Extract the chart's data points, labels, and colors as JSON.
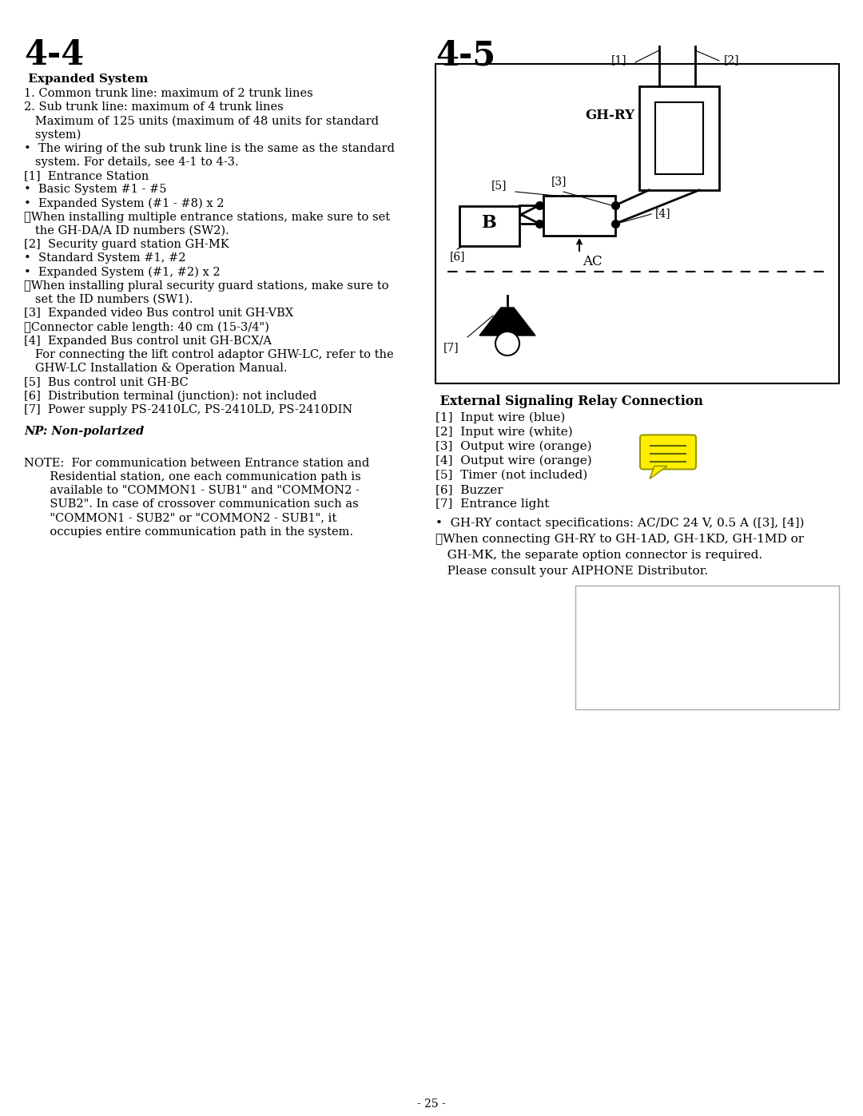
{
  "page_bg": "#ffffff",
  "left_title": "4-4",
  "right_title": "4-5",
  "left_section_title": " Expanded System",
  "left_body_lines": [
    {
      "text": "1. Common trunk line: maximum of 2 trunk lines",
      "indent": 0
    },
    {
      "text": "2. Sub trunk line: maximum of 4 trunk lines",
      "indent": 0
    },
    {
      "text": "   Maximum of 125 units (maximum of 48 units for standard",
      "indent": 0
    },
    {
      "text": "   system)",
      "indent": 0
    },
    {
      "text": "•  The wiring of the sub trunk line is the same as the standard",
      "indent": 0
    },
    {
      "text": "   system. For details, see 4-1 to 4-3.",
      "indent": 0
    },
    {
      "text": "[1]  Entrance Station",
      "indent": 0
    },
    {
      "text": "•  Basic System #1 - #5",
      "indent": 0
    },
    {
      "text": "•  Expanded System (#1 - #8) x 2",
      "indent": 0
    },
    {
      "text": "⚠When installing multiple entrance stations, make sure to set",
      "indent": 0
    },
    {
      "text": "   the GH-DA/A ID numbers (SW2).",
      "indent": 0
    },
    {
      "text": "[2]  Security guard station GH-MK",
      "indent": 0
    },
    {
      "text": "•  Standard System #1, #2",
      "indent": 0
    },
    {
      "text": "•  Expanded System (#1, #2) x 2",
      "indent": 0
    },
    {
      "text": "⚠When installing plural security guard stations, make sure to",
      "indent": 0
    },
    {
      "text": "   set the ID numbers (SW1).",
      "indent": 0
    },
    {
      "text": "[3]  Expanded video Bus control unit GH-VBX",
      "indent": 0
    },
    {
      "text": "⚠Connector cable length: 40 cm (15-3/4\")",
      "indent": 0
    },
    {
      "text": "[4]  Expanded Bus control unit GH-BCX/A",
      "indent": 0
    },
    {
      "text": "   For connecting the lift control adaptor GHW-LC, refer to the",
      "indent": 0
    },
    {
      "text": "   GHW-LC Installation & Operation Manual.",
      "indent": 0
    },
    {
      "text": "[5]  Bus control unit GH-BC",
      "indent": 0
    },
    {
      "text": "[6]  Distribution terminal (junction): not included",
      "indent": 0
    },
    {
      "text": "[7]  Power supply PS-2410LC, PS-2410LD, PS-2410DIN",
      "indent": 0
    }
  ],
  "np_text": "NP: Non-polarized",
  "note_lines": [
    "NOTE:  For communication between Entrance station and",
    "       Residential station, one each communication path is",
    "       available to \"COMMON1 - SUB1\" and \"COMMON2 -",
    "       SUB2\". In case of crossover communication such as",
    "       \"COMMON1 - SUB2\" or \"COMMON2 - SUB1\", it",
    "       occupies entire communication path in the system."
  ],
  "diagram_title": " External Signaling Relay Connection",
  "legend_lines": [
    "[1]  Input wire (blue)",
    "[2]  Input wire (white)",
    "[3]  Output wire (orange)",
    "[4]  Output wire (orange)",
    "[5]  Timer (not included)",
    "[6]  Buzzer",
    "[7]  Entrance light"
  ],
  "bullet_note": "•  GH-RY contact specifications: AC/DC 24 V, 0.5 A ([3], [4])",
  "warning_line1": "⚠When connecting GH-RY to GH-1AD, GH-1KD, GH-1MD or",
  "warning_line2": "   GH-MK, the separate option connector is required.",
  "warning_line3": "   Please consult your AIPHONE Distributor.",
  "page_number": "- 25 -",
  "text_color": "#000000",
  "line_color": "#000000"
}
